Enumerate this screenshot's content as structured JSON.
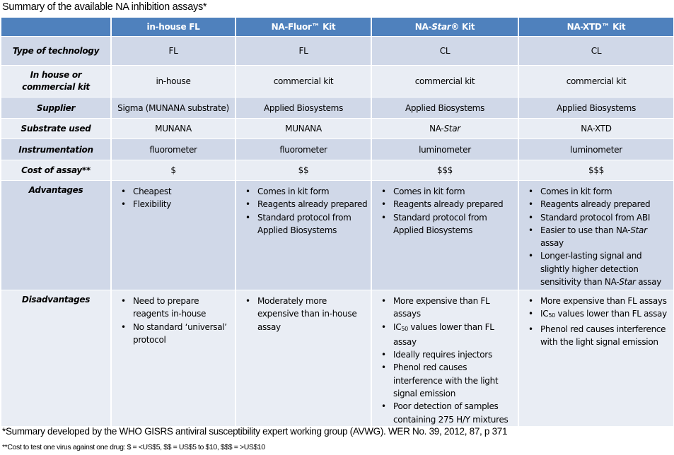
{
  "title": "Summary of the available NA inhibition assays*",
  "columns": [
    {
      "parts": [
        {
          "t": ""
        }
      ]
    },
    {
      "parts": [
        {
          "t": "in-house FL"
        }
      ]
    },
    {
      "parts": [
        {
          "t": "NA-Fluor™ Kit"
        }
      ]
    },
    {
      "parts": [
        {
          "t": "NA-"
        },
        {
          "t": "Star",
          "i": true
        },
        {
          "t": "® Kit"
        }
      ]
    },
    {
      "parts": [
        {
          "t": "NA-XTD™ Kit"
        }
      ]
    }
  ],
  "rows": [
    {
      "label": "Type of technology",
      "values": [
        "FL",
        "FL",
        "CL",
        "CL"
      ]
    },
    {
      "label": "In house or commercial kit",
      "values": [
        "in-house",
        "commercial kit",
        "commercial kit",
        "commercial kit"
      ]
    },
    {
      "label": "Supplier",
      "values": [
        "Sigma (MUNANA substrate)",
        "Applied Biosystems",
        "Applied Biosystems",
        "Applied Biosystems"
      ]
    },
    {
      "label": "Substrate used",
      "values": [
        "MUNANA",
        "MUNANA",
        [
          {
            "t": "NA-"
          },
          {
            "t": "Star",
            "i": true
          }
        ],
        "NA-XTD"
      ]
    },
    {
      "label": "Instrumentation",
      "values": [
        "fluorometer",
        "fluorometer",
        "luminometer",
        "luminometer"
      ]
    },
    {
      "label": "Cost of assay**",
      "values": [
        "$",
        "$$",
        "$$$",
        "$$$"
      ]
    },
    {
      "label": "Advantages",
      "bullets": [
        [
          [
            {
              "t": "Cheapest"
            }
          ],
          [
            {
              "t": "Flexibility"
            }
          ]
        ],
        [
          [
            {
              "t": "Comes in kit form"
            }
          ],
          [
            {
              "t": "Reagents already prepared"
            }
          ],
          [
            {
              "t": "Standard protocol from Applied Biosystems"
            }
          ]
        ],
        [
          [
            {
              "t": "Comes in kit form"
            }
          ],
          [
            {
              "t": "Reagents already prepared"
            }
          ],
          [
            {
              "t": "Standard protocol from Applied Biosystems"
            }
          ]
        ],
        [
          [
            {
              "t": "Comes in kit form"
            }
          ],
          [
            {
              "t": "Reagents already prepared"
            }
          ],
          [
            {
              "t": "Standard protocol from ABI"
            }
          ],
          [
            {
              "t": "Easier to use than NA-"
            },
            {
              "t": "Star",
              "i": true
            },
            {
              "t": " assay"
            }
          ],
          [
            {
              "t": "Longer-lasting signal and slightly higher detection sensitivity than NA-"
            },
            {
              "t": "Star",
              "i": true
            },
            {
              "t": " assay"
            }
          ]
        ]
      ]
    },
    {
      "label": "Disadvantages",
      "bullets": [
        [
          [
            {
              "t": "Need to prepare reagents in-house"
            }
          ],
          [
            {
              "t": "No standard ‘universal’ protocol"
            }
          ]
        ],
        [
          [
            {
              "t": "Moderately more expensive than in-house assay"
            }
          ]
        ],
        [
          [
            {
              "t": "More expensive than FL assays"
            }
          ],
          [
            {
              "t": "IC"
            },
            {
              "t": "50",
              "sub": true
            },
            {
              "t": " values lower than FL assay"
            }
          ],
          [
            {
              "t": "Ideally requires injectors"
            }
          ],
          [
            {
              "t": "Phenol red causes interference with the light signal emission"
            }
          ],
          [
            {
              "t": "Poor detection of samples containing 275 H/Y mixtures"
            }
          ]
        ],
        [
          [
            {
              "t": "More expensive than FL assays"
            }
          ],
          [
            {
              "t": "IC"
            },
            {
              "t": "50",
              "sub": true
            },
            {
              "t": " values lower than FL assay"
            }
          ],
          [
            {
              "t": "Phenol red causes interference with the light signal emission"
            }
          ]
        ]
      ]
    }
  ],
  "footnote1": "*Summary developed by the WHO GISRS antiviral susceptibility expert working group (AVWG). WER No. 39, 2012, 87, p 371",
  "footnote2": "**Cost to test one virus against one drug: $ = <US$5, $$ = US$5 to $10, $$$ = >US$10",
  "colors": {
    "header": "#4f81bd",
    "row_dark": "#d0d8e8",
    "row_light": "#e9edf4"
  }
}
